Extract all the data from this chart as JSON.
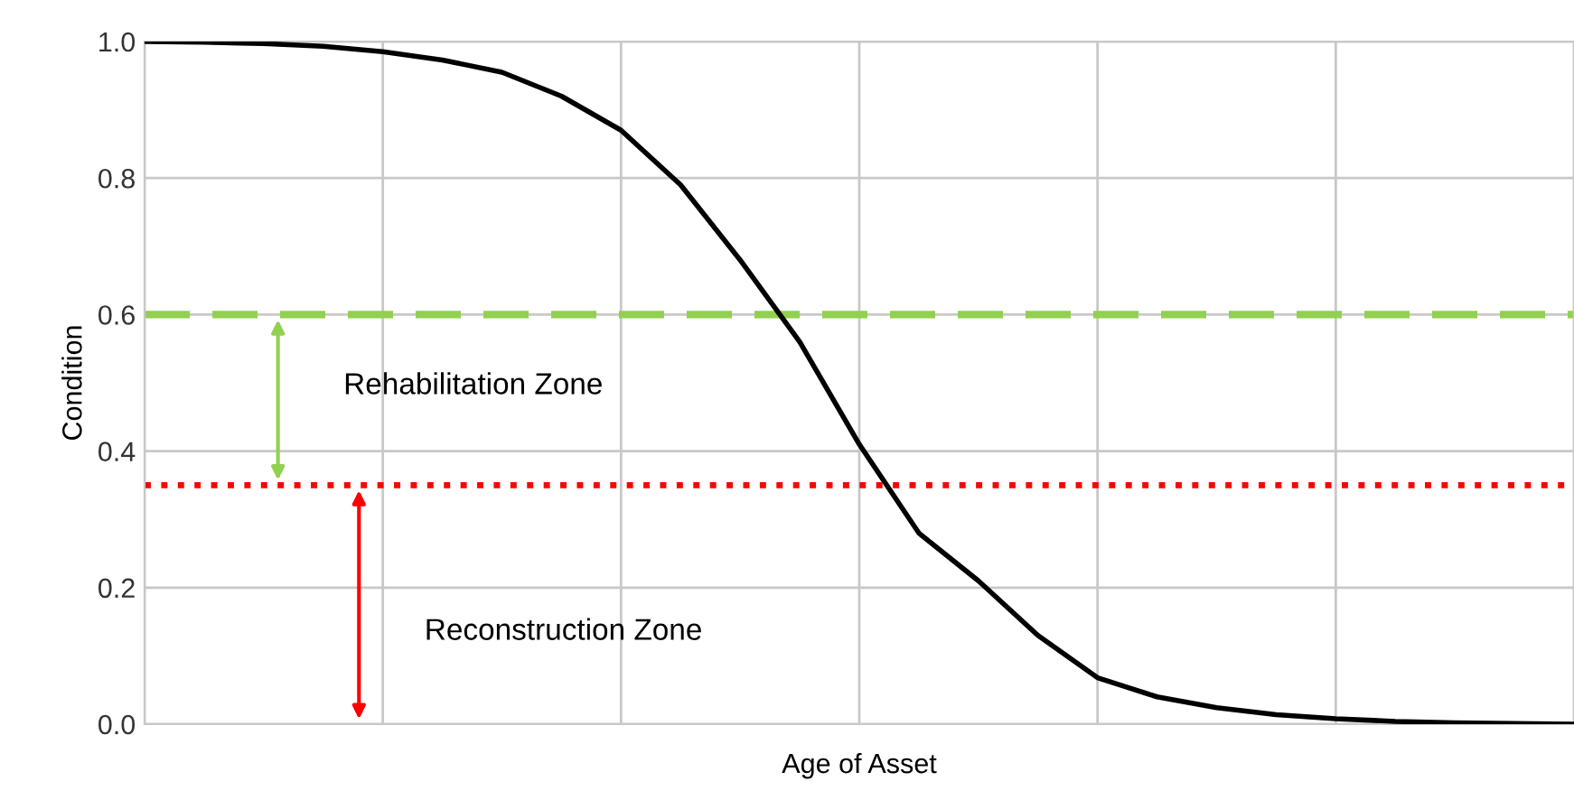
{
  "chart_data": {
    "type": "line",
    "xlabel": "Age of Asset",
    "ylabel": "Condition",
    "categories": [
      null,
      null,
      null,
      null,
      null,
      null,
      null,
      null,
      null,
      null,
      null,
      null,
      null,
      null,
      null,
      null,
      null,
      null,
      null,
      null,
      null,
      null,
      null,
      null,
      null
    ],
    "series": [
      {
        "color": "#000000",
        "values": [
          1.0,
          0.999,
          0.997,
          0.993,
          0.985,
          0.973,
          0.955,
          0.92,
          0.87,
          0.79,
          0.68,
          0.56,
          0.41,
          0.28,
          0.21,
          0.13,
          0.068,
          0.04,
          0.024,
          0.014,
          0.008,
          0.004,
          0.002,
          0.001,
          0.0
        ]
      }
    ],
    "ylim": [
      0,
      1
    ],
    "yticks": [
      {
        "value": 0,
        "label": "0.0"
      },
      {
        "value": 0.2,
        "label": "0.2"
      },
      {
        "value": 0.4,
        "label": "0.4"
      },
      {
        "value": 0.6,
        "label": "0.6"
      },
      {
        "value": 0.8,
        "label": "0.8"
      },
      {
        "value": 1,
        "label": "1.0"
      }
    ],
    "ref_lines": [
      {
        "axis": "y",
        "value": 0.6,
        "color": "#92d050",
        "line_style": "dashed"
      },
      {
        "axis": "y",
        "value": 0.35,
        "color": "#ff0000",
        "line_style": "dotted"
      }
    ],
    "annotations": [
      "Rehabilitation Zone",
      "Reconstruction Zone"
    ],
    "grid": true,
    "marker": "none",
    "line_style": "solid",
    "legend": false
  }
}
